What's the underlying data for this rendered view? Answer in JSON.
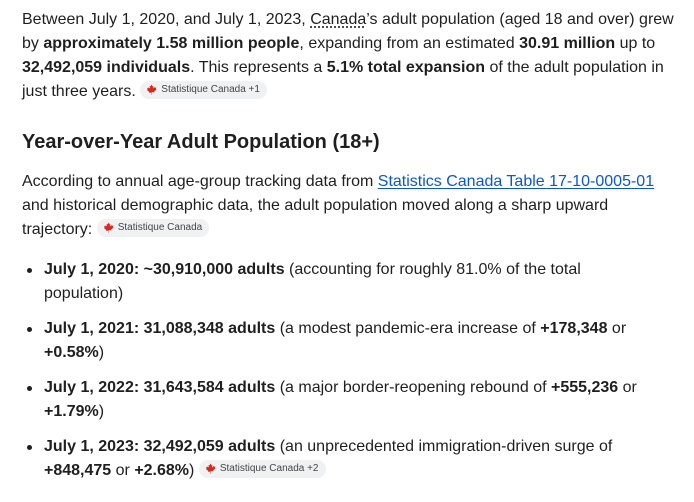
{
  "intro": {
    "t1": "Between July 1, 2020, and July 1, 2023, ",
    "country": "Canada",
    "t2": "’s adult population (aged 18 and over) grew by ",
    "b1": "approximately 1.58 million people",
    "t3": ", expanding from an estimated ",
    "b2": "30.91 million",
    "t4": " up to ",
    "b3": "32,492,059 individuals",
    "t5": ". This represents a ",
    "b4": "5.1% total expansion",
    "t6": " of the adult population in just three years. ",
    "chip": "Statistique Canada +1"
  },
  "section": {
    "heading": "Year-over-Year Adult Population (18+)",
    "t1": "According to annual age-group tracking data from ",
    "link": "Statistics Canada Table 17-10-0005-01",
    "t2": " and historical demographic data, the adult population moved along a sharp upward trajectory: ",
    "chip": "Statistique Canada"
  },
  "bullets": [
    {
      "bold": "July 1, 2020: ~30,910,000 adults",
      "rest": " (accounting for roughly 81.0% of the total population)"
    },
    {
      "bold": "July 1, 2021: 31,088,348 adults",
      "mid": " (a modest pandemic-era increase of ",
      "b2": "+178,348",
      "mid2": " or ",
      "b3": "+0.58%",
      "end": ")"
    },
    {
      "bold": "July 1, 2022: 31,643,584 adults",
      "mid": " (a major border-reopening rebound of ",
      "b2": "+555,236",
      "mid2": " or ",
      "b3": "+1.79%",
      "end": ")"
    },
    {
      "bold": "July 1, 2023: 32,492,059 adults",
      "mid": " (an unprecedented immigration-driven surge of ",
      "b2": "+848,475",
      "mid2": " or ",
      "b3": "+2.68%",
      "end": ") ",
      "chip": "Statistique Canada +2"
    }
  ],
  "icons": {
    "source_icon": "maple-leaf-icon",
    "leaf_color": "#d52b1e"
  }
}
